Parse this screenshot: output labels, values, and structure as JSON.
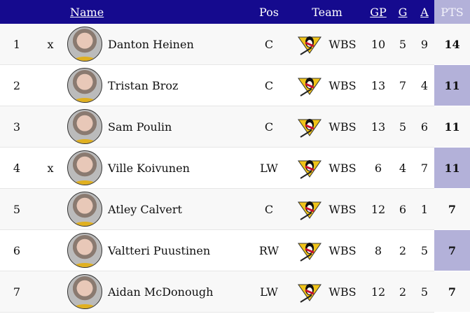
{
  "headers": {
    "rank": "",
    "flag": "",
    "name": "Name",
    "pos": "Pos",
    "team": "Team",
    "gp": "GP",
    "g": "G",
    "a": "A",
    "pts": "PTS"
  },
  "colors": {
    "header": "#150a8e",
    "pts_column": "#b3b1d9"
  },
  "rows": [
    {
      "rank": "1",
      "flag": "x",
      "name": "Danton Heinen",
      "pos": "C",
      "team": "WBS",
      "gp": "10",
      "g": "5",
      "a": "9",
      "pts": "14"
    },
    {
      "rank": "2",
      "flag": "",
      "name": "Tristan Broz",
      "pos": "C",
      "team": "WBS",
      "gp": "13",
      "g": "7",
      "a": "4",
      "pts": "11"
    },
    {
      "rank": "3",
      "flag": "",
      "name": "Sam Poulin",
      "pos": "C",
      "team": "WBS",
      "gp": "13",
      "g": "5",
      "a": "6",
      "pts": "11"
    },
    {
      "rank": "4",
      "flag": "x",
      "name": "Ville Koivunen",
      "pos": "LW",
      "team": "WBS",
      "gp": "6",
      "g": "4",
      "a": "7",
      "pts": "11"
    },
    {
      "rank": "5",
      "flag": "",
      "name": "Atley Calvert",
      "pos": "C",
      "team": "WBS",
      "gp": "12",
      "g": "6",
      "a": "1",
      "pts": "7"
    },
    {
      "rank": "6",
      "flag": "",
      "name": "Valtteri Puustinen",
      "pos": "RW",
      "team": "WBS",
      "gp": "8",
      "g": "2",
      "a": "5",
      "pts": "7"
    },
    {
      "rank": "7",
      "flag": "",
      "name": "Aidan McDonough",
      "pos": "LW",
      "team": "WBS",
      "gp": "12",
      "g": "2",
      "a": "5",
      "pts": "7"
    }
  ]
}
